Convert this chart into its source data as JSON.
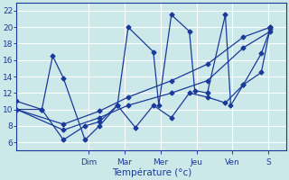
{
  "title": "Température (°c)",
  "background_color": "#cce8e8",
  "grid_color": "#b8d8d8",
  "line_color": "#1a3a9a",
  "x_day_labels": [
    "Dim",
    "Mar",
    "Mer",
    "Jeu",
    "Ven",
    "S"
  ],
  "x_day_positions": [
    2.0,
    3.0,
    4.0,
    5.0,
    6.0,
    7.0
  ],
  "ylim": [
    5,
    23
  ],
  "xlim": [
    0.0,
    7.5
  ],
  "yticks": [
    6,
    8,
    10,
    12,
    14,
    16,
    18,
    20,
    22
  ],
  "lines": [
    {
      "x": [
        0.0,
        0.7,
        1.0,
        1.3,
        1.9,
        2.3,
        2.8,
        3.1,
        3.8,
        3.95,
        4.3,
        4.8,
        4.95,
        5.3,
        5.8,
        5.95,
        6.3,
        6.8,
        7.05
      ],
      "y": [
        11.0,
        10.0,
        16.5,
        13.8,
        6.3,
        8.0,
        10.5,
        20.0,
        17.0,
        10.5,
        21.5,
        19.5,
        12.3,
        12.0,
        21.5,
        10.5,
        13.0,
        16.8,
        19.8
      ]
    },
    {
      "x": [
        0.0,
        0.7,
        1.3,
        1.9,
        2.3,
        2.8,
        3.3,
        3.8,
        4.3,
        4.8,
        5.3,
        5.8,
        6.3,
        6.8,
        7.05
      ],
      "y": [
        10.0,
        10.0,
        6.3,
        8.0,
        8.5,
        10.5,
        7.8,
        10.5,
        9.0,
        12.0,
        11.5,
        10.8,
        13.0,
        14.5,
        20.0
      ]
    },
    {
      "x": [
        0.0,
        1.3,
        2.3,
        3.1,
        4.3,
        5.3,
        6.3,
        7.05
      ],
      "y": [
        10.0,
        7.5,
        9.0,
        10.5,
        12.0,
        13.5,
        17.5,
        19.5
      ]
    },
    {
      "x": [
        0.0,
        1.3,
        2.3,
        3.1,
        4.3,
        5.3,
        6.3,
        7.05
      ],
      "y": [
        10.0,
        8.2,
        9.8,
        11.5,
        13.5,
        15.5,
        18.8,
        20.0
      ]
    }
  ]
}
